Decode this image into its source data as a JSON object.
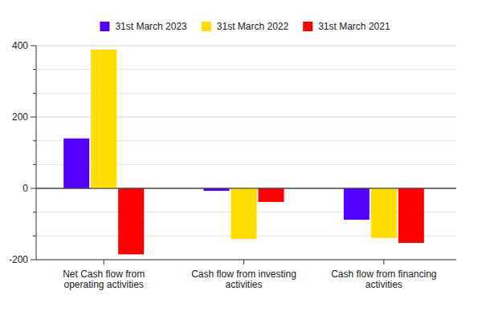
{
  "chart_data": {
    "type": "bar",
    "categories": [
      "Net Cash flow from operating activities",
      "Cash flow from investing activities",
      "Cash flow from financing activities"
    ],
    "series": [
      {
        "name": "31st March 2023",
        "color": "#5500ff",
        "values": [
          140,
          -7,
          -88
        ]
      },
      {
        "name": "31st March 2022",
        "color": "#ffdd00",
        "values": [
          389,
          -142,
          -139
        ]
      },
      {
        "name": "31st March 2021",
        "color": "#ff0000",
        "values": [
          -185,
          -38,
          -153
        ]
      }
    ],
    "ylim": [
      -200,
      400
    ],
    "yticks": [
      -200,
      0,
      200,
      400
    ],
    "grid": true,
    "legend": "top"
  }
}
